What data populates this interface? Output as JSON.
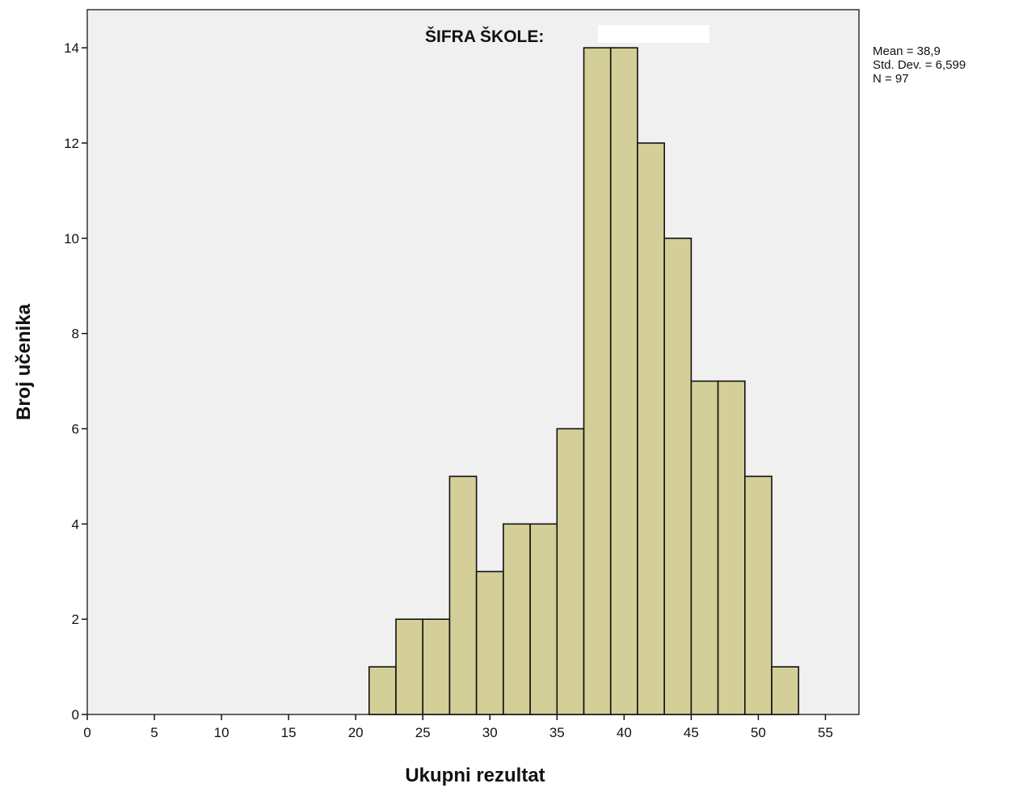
{
  "chart_data": {
    "type": "bar",
    "title": "ŠIFRA ŠKOLE:",
    "xlabel": "Ukupni rezultat",
    "ylabel": "Broj učenika",
    "xlim": [
      0,
      57.5
    ],
    "ylim": [
      0,
      14.8
    ],
    "x_ticks": [
      "0",
      "5",
      "10",
      "15",
      "20",
      "25",
      "30",
      "35",
      "40",
      "45",
      "50",
      "55"
    ],
    "y_ticks": [
      "0",
      "2",
      "4",
      "6",
      "8",
      "10",
      "12",
      "14"
    ],
    "bin_width": 2,
    "bins": [
      {
        "x0": 21,
        "x1": 23,
        "count": 1
      },
      {
        "x0": 23,
        "x1": 25,
        "count": 2
      },
      {
        "x0": 25,
        "x1": 27,
        "count": 2
      },
      {
        "x0": 27,
        "x1": 29,
        "count": 5
      },
      {
        "x0": 29,
        "x1": 31,
        "count": 3
      },
      {
        "x0": 31,
        "x1": 33,
        "count": 4
      },
      {
        "x0": 33,
        "x1": 35,
        "count": 4
      },
      {
        "x0": 35,
        "x1": 37,
        "count": 6
      },
      {
        "x0": 37,
        "x1": 39,
        "count": 14
      },
      {
        "x0": 39,
        "x1": 41,
        "count": 14
      },
      {
        "x0": 41,
        "x1": 43,
        "count": 12
      },
      {
        "x0": 43,
        "x1": 45,
        "count": 10
      },
      {
        "x0": 45,
        "x1": 47,
        "count": 7
      },
      {
        "x0": 47,
        "x1": 49,
        "count": 7
      },
      {
        "x0": 49,
        "x1": 51,
        "count": 5
      },
      {
        "x0": 51,
        "x1": 53,
        "count": 1
      }
    ],
    "stats": {
      "mean": "Mean = 38,9",
      "std": "Std. Dev. = 6,599",
      "n": "N = 97"
    },
    "colors": {
      "bar_fill": "#d4cf98",
      "bar_stroke": "#111111",
      "plot_bg": "#f0f0f0"
    },
    "grid": false,
    "legend": "none"
  }
}
